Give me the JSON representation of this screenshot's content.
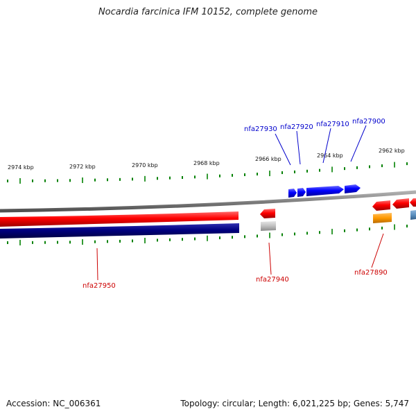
{
  "title": "Nocardia farcinica IFM 10152, complete genome",
  "accession": "Accession: NC_006361",
  "summary": "Topology: circular; Length: 6,021,225 bp; Genes: 5,747",
  "scale_labels": [
    "2974 kbp",
    "2972 kbp",
    "2970 kbp",
    "2968 kbp",
    "2966 kbp",
    "2964 kbp",
    "2962 kbp"
  ],
  "gene_labels_forward": [
    "nfa27930",
    "nfa27920",
    "nfa27910",
    "nfa27900"
  ],
  "gene_labels_reverse": [
    "nfa27950",
    "nfa27940",
    "nfa27890"
  ],
  "colors": {
    "forward_cds": "#0000ff",
    "reverse_cds": "#ff0000",
    "reverse_strand_band": "#000080",
    "backbone": "#808080",
    "tick": "#008000",
    "forward_label": "#0000cc",
    "reverse_label": "#cc0000",
    "grey_feature": "#c0c0c0",
    "orange_feature": "#ff9900",
    "steel_feature": "#5b8fbf"
  }
}
